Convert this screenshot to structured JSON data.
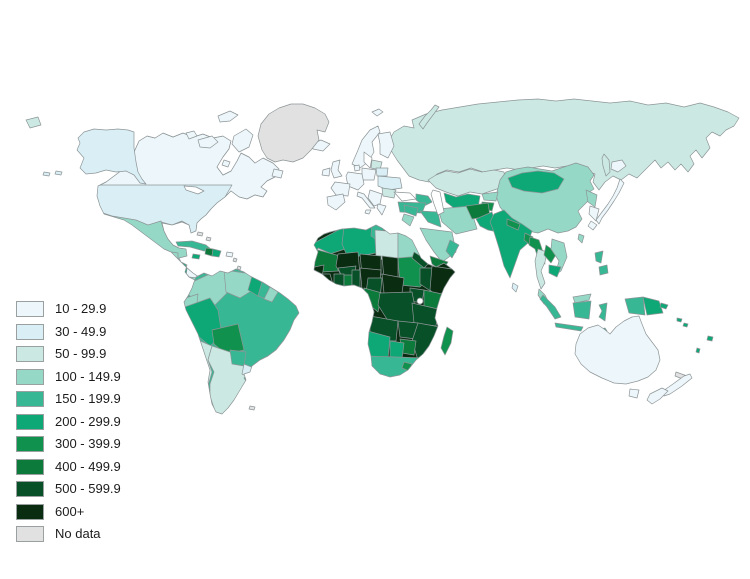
{
  "chart_data": {
    "type": "heatmap",
    "subtype": "choropleth-world-map",
    "legend": {
      "position": "bottom-left",
      "swatch_border_color": "#9aa0a0",
      "items": [
        {
          "label": "10 - 29.9",
          "color": "#edf6fa"
        },
        {
          "label": "30 - 49.9",
          "color": "#d9eff5"
        },
        {
          "label": "50 - 99.9",
          "color": "#cbe9e2"
        },
        {
          "label": "100 - 149.9",
          "color": "#96d8c6"
        },
        {
          "label": "150 - 199.9",
          "color": "#38b795"
        },
        {
          "label": "200 - 299.9",
          "color": "#0ea876"
        },
        {
          "label": "300 - 399.9",
          "color": "#11914e"
        },
        {
          "label": "400 - 499.9",
          "color": "#0b7a3a"
        },
        {
          "label": "500 - 599.9",
          "color": "#085027"
        },
        {
          "label": "600+",
          "color": "#0a2d12"
        },
        {
          "label": "No data",
          "color": "#e1e1e1"
        }
      ]
    },
    "map": {
      "ocean_color": "#ffffff",
      "country_border_color": "#8d9597"
    },
    "regions": {
      "canada": "10 - 29.9",
      "usa": "30 - 49.9",
      "alaska": "30 - 49.9",
      "greenland": "No data",
      "mexico": "100 - 149.9",
      "guatemala": "400 - 499.9",
      "belize": "100 - 149.9",
      "honduras": "200 - 299.9",
      "nicaragua": "200 - 299.9",
      "costa-rica": "100 - 149.9",
      "panama": "100 - 149.9",
      "cuba": "150 - 199.9",
      "jamaica": "200 - 299.9",
      "haiti": "400 - 499.9",
      "dominican-republic": "200 - 299.9",
      "puerto-rico": "10 - 29.9",
      "bahamas": "No data",
      "lesser-antilles": "No data",
      "colombia": "100 - 149.9",
      "venezuela": "100 - 149.9",
      "guyana": "200 - 299.9",
      "suriname": "150 - 199.9",
      "french-guiana": "100 - 149.9",
      "ecuador": "100 - 149.9",
      "peru": "200 - 299.9",
      "bolivia": "300 - 399.9",
      "brazil": "150 - 199.9",
      "paraguay": "150 - 199.9",
      "chile": "50 - 99.9",
      "argentina": "50 - 99.9",
      "uruguay": "30 - 49.9",
      "falkland-islands": "No data",
      "iceland": "10 - 29.9",
      "ireland": "10 - 29.9",
      "united-kingdom": "10 - 29.9",
      "iberia": "10 - 29.9",
      "france": "10 - 29.9",
      "central-europe": "10 - 29.9",
      "denmark": "10 - 29.9",
      "italy": "10 - 29.9",
      "scandinavia": "10 - 29.9",
      "finland": "10 - 29.9",
      "baltic-states": "50 - 99.9",
      "belarus": "30 - 49.9",
      "poland": "10 - 29.9",
      "ukraine": "30 - 49.9",
      "romania": "50 - 99.9",
      "balkans": "10 - 29.9",
      "greece": "10 - 29.9",
      "russia": "50 - 99.9",
      "sakhalin": "50 - 99.9",
      "svalbard": "10 - 29.9",
      "kazakhstan": "50 - 99.9",
      "uzbekistan-turkmenistan": "200 - 299.9",
      "kyrgyzstan": "100 - 149.9",
      "tajikistan": "300 - 399.9",
      "caucasus": "150 - 199.9",
      "turkey": "150 - 199.9",
      "syria": "150 - 199.9",
      "iraq": "150 - 199.9",
      "jordan-israel": "100 - 149.9",
      "saudi-arabia": "100 - 149.9",
      "yemen": "400 - 499.9",
      "oman": "150 - 199.9",
      "iran": "100 - 149.9",
      "afghanistan": "400 - 499.9",
      "pakistan": "200 - 299.9",
      "india": "200 - 299.9",
      "nepal": "300 - 399.9",
      "bangladesh": "300 - 399.9",
      "sri-lanka": "30 - 49.9",
      "china": "100 - 149.9",
      "mongolia": "200 - 299.9",
      "north-korea": "100 - 149.9",
      "south-korea": "10 - 29.9",
      "japan": "10 - 29.9",
      "taiwan": "100 - 149.9",
      "myanmar": "300 - 399.9",
      "thailand": "50 - 99.9",
      "laos": "300 - 399.9",
      "vietnam": "100 - 149.9",
      "cambodia": "200 - 299.9",
      "malaysia": "100 - 149.9",
      "indonesia": "150 - 199.9",
      "philippines": "150 - 199.9",
      "papua-new-guinea": "200 - 299.9",
      "solomon-islands": "200 - 299.9",
      "vanuatu": "200 - 299.9",
      "fiji": "200 - 299.9",
      "new-caledonia": "No data",
      "australia": "10 - 29.9",
      "new-zealand": "10 - 29.9",
      "morocco": "200 - 299.9",
      "western-sahara": "No data",
      "algeria": "200 - 299.9",
      "tunisia": "150 - 199.9",
      "libya": "50 - 99.9",
      "egypt": "100 - 149.9",
      "mauritania": "400 - 499.9",
      "mali": "600+",
      "niger": "600+",
      "chad": "600+",
      "sudan": "300 - 399.9",
      "eritrea": "500 - 599.9",
      "ethiopia": "500 - 599.9",
      "somalia": "600+",
      "senegal": "600+",
      "guinea": "600+",
      "cote-divoire": "500 - 599.9",
      "ghana": "400 - 499.9",
      "burkina-faso": "500 - 599.9",
      "togo-benin": "500 - 599.9",
      "nigeria": "600+",
      "cameroon": "500 - 599.9",
      "central-african-republic": "600+",
      "uganda": "500 - 599.9",
      "kenya": "400 - 499.9",
      "congo-gabon": "400 - 499.9",
      "drc": "500 - 599.9",
      "tanzania": "500 - 599.9",
      "angola": "500 - 599.9",
      "zambia": "500 - 599.9",
      "mozambique": "500 - 599.9",
      "zimbabwe": "400 - 499.9",
      "namibia": "200 - 299.9",
      "botswana": "200 - 299.9",
      "south-africa": "150 - 199.9",
      "lesotho": "300 - 399.9",
      "madagascar": "300 - 399.9",
      "africa-interior": "600+"
    }
  }
}
